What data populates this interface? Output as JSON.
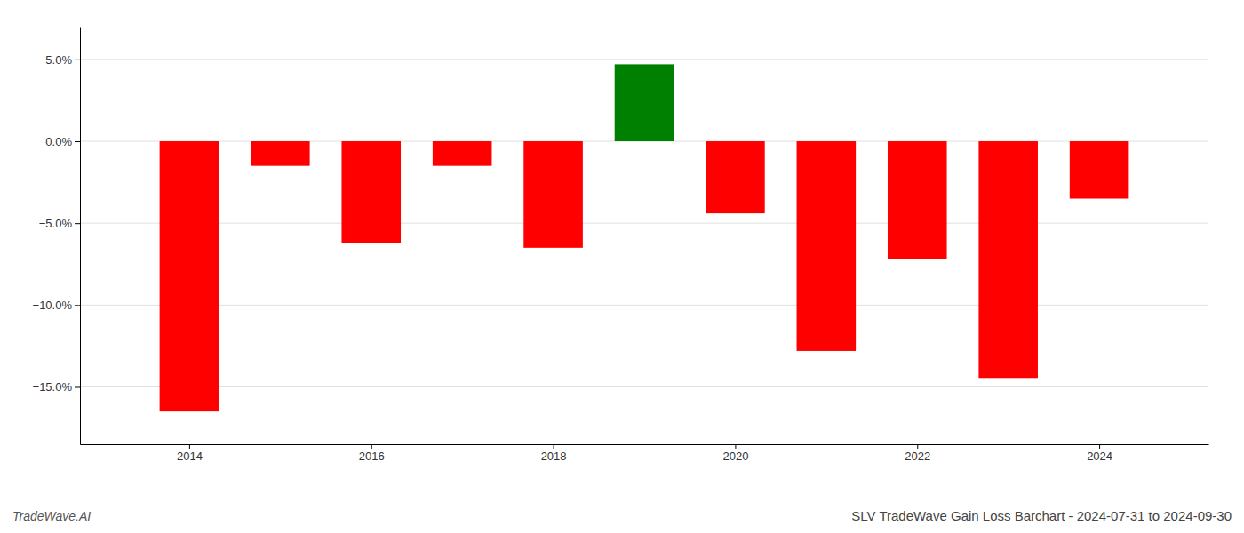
{
  "chart_data": {
    "type": "bar",
    "title": "SLV TradeWave Gain Loss Barchart - 2024-07-31 to 2024-09-30",
    "annotations": [
      "TradeWave.AI"
    ],
    "x": [
      2014,
      2015,
      2016,
      2017,
      2018,
      2019,
      2020,
      2021,
      2022,
      2023,
      2024
    ],
    "values": [
      -16.5,
      -1.5,
      -6.2,
      -1.5,
      -6.5,
      4.7,
      -4.4,
      -12.8,
      -7.2,
      -14.5,
      -3.5
    ],
    "colors": [
      "#ff0000",
      "#ff0000",
      "#ff0000",
      "#ff0000",
      "#ff0000",
      "#008000",
      "#ff0000",
      "#ff0000",
      "#ff0000",
      "#ff0000",
      "#ff0000"
    ],
    "xlim": [
      2012.8,
      2025.2
    ],
    "xticks": [
      2014,
      2016,
      2018,
      2020,
      2022,
      2024
    ],
    "ylim": [
      -18.5,
      7.0
    ],
    "yticks": [
      {
        "value": 5.0,
        "label": "5.0%"
      },
      {
        "value": 0.0,
        "label": "0.0%"
      },
      {
        "value": -5.0,
        "label": "−5.0%"
      },
      {
        "value": -10.0,
        "label": "−10.0%"
      },
      {
        "value": -15.0,
        "label": "−15.0%"
      }
    ],
    "grid": true
  }
}
